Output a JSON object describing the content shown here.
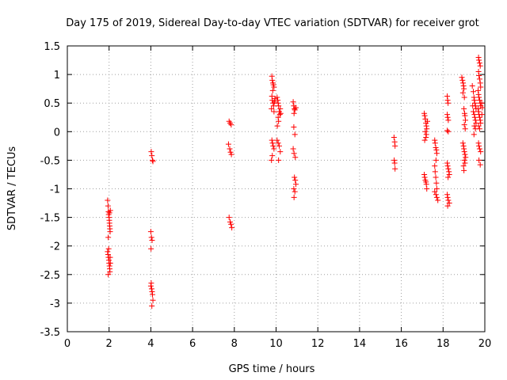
{
  "chart_data": {
    "type": "scatter",
    "title": "Day 175 of 2019, Sidereal Day-to-day VTEC variation (SDTVAR) for receiver grot",
    "xlabel": "GPS time / hours",
    "ylabel": "SDTVAR / TECUs",
    "xlim": [
      0,
      20
    ],
    "ylim": [
      -3.5,
      1.5
    ],
    "xticks": [
      "0",
      "2",
      "4",
      "6",
      "8",
      "10",
      "12",
      "14",
      "16",
      "18",
      "20"
    ],
    "yticks": [
      "1.5",
      "1",
      "0.5",
      "0",
      "-0.5",
      "-1",
      "-1.5",
      "-2",
      "-2.5",
      "-3",
      "-3.5"
    ],
    "grid": true,
    "marker": "+",
    "color": "#ff0000",
    "series": [
      {
        "name": "SDTVAR",
        "points": [
          [
            1.93,
            -1.2
          ],
          [
            1.95,
            -1.3
          ],
          [
            1.97,
            -1.4
          ],
          [
            1.98,
            -1.45
          ],
          [
            2.0,
            -1.5
          ],
          [
            2.01,
            -1.55
          ],
          [
            2.02,
            -1.6
          ],
          [
            2.03,
            -1.65
          ],
          [
            2.04,
            -1.7
          ],
          [
            2.05,
            -1.75
          ],
          [
            1.96,
            -1.85
          ],
          [
            2.02,
            -1.42
          ],
          [
            2.06,
            -1.38
          ],
          [
            1.93,
            -2.1
          ],
          [
            1.95,
            -2.15
          ],
          [
            1.97,
            -2.2
          ],
          [
            1.99,
            -2.25
          ],
          [
            2.0,
            -2.3
          ],
          [
            2.02,
            -2.35
          ],
          [
            2.03,
            -2.4
          ],
          [
            2.04,
            -2.45
          ],
          [
            1.96,
            -2.5
          ],
          [
            2.05,
            -2.2
          ],
          [
            2.06,
            -2.3
          ],
          [
            1.98,
            -2.05
          ],
          [
            4.02,
            -0.35
          ],
          [
            4.05,
            -0.42
          ],
          [
            4.08,
            -0.5
          ],
          [
            4.1,
            -0.52
          ],
          [
            4.0,
            -1.75
          ],
          [
            4.03,
            -1.85
          ],
          [
            4.06,
            -1.9
          ],
          [
            4.01,
            -2.05
          ],
          [
            4.02,
            -2.65
          ],
          [
            4.04,
            -2.75
          ],
          [
            4.06,
            -2.8
          ],
          [
            4.08,
            -2.85
          ],
          [
            4.1,
            -2.95
          ],
          [
            4.05,
            -3.05
          ],
          [
            4.0,
            -2.7
          ],
          [
            7.75,
            0.18
          ],
          [
            7.8,
            0.15
          ],
          [
            7.85,
            0.12
          ],
          [
            7.72,
            -0.22
          ],
          [
            7.78,
            -0.3
          ],
          [
            7.82,
            -0.36
          ],
          [
            7.86,
            -0.4
          ],
          [
            7.75,
            -1.5
          ],
          [
            7.8,
            -1.58
          ],
          [
            7.84,
            -1.62
          ],
          [
            7.88,
            -1.68
          ],
          [
            9.8,
            0.97
          ],
          [
            9.82,
            0.9
          ],
          [
            9.85,
            0.85
          ],
          [
            9.87,
            0.82
          ],
          [
            9.9,
            0.78
          ],
          [
            9.84,
            0.72
          ],
          [
            9.8,
            0.62
          ],
          [
            9.82,
            0.55
          ],
          [
            9.86,
            0.5
          ],
          [
            9.88,
            0.45
          ],
          [
            9.92,
            0.52
          ],
          [
            9.95,
            0.58
          ],
          [
            9.78,
            0.4
          ],
          [
            9.9,
            0.35
          ],
          [
            9.8,
            -0.15
          ],
          [
            9.83,
            -0.2
          ],
          [
            9.86,
            -0.25
          ],
          [
            9.9,
            -0.3
          ],
          [
            9.82,
            -0.42
          ],
          [
            9.78,
            -0.5
          ],
          [
            10.05,
            0.6
          ],
          [
            10.08,
            0.55
          ],
          [
            10.1,
            0.5
          ],
          [
            10.12,
            0.45
          ],
          [
            10.15,
            0.35
          ],
          [
            10.18,
            0.3
          ],
          [
            10.1,
            0.25
          ],
          [
            10.12,
            0.18
          ],
          [
            10.06,
            0.1
          ],
          [
            10.2,
            0.4
          ],
          [
            10.22,
            0.32
          ],
          [
            10.05,
            -0.15
          ],
          [
            10.1,
            -0.2
          ],
          [
            10.15,
            -0.25
          ],
          [
            10.2,
            -0.35
          ],
          [
            10.12,
            -0.5
          ],
          [
            10.82,
            0.52
          ],
          [
            10.85,
            0.45
          ],
          [
            10.88,
            0.4
          ],
          [
            10.9,
            0.38
          ],
          [
            10.95,
            0.42
          ],
          [
            10.86,
            0.32
          ],
          [
            10.85,
            0.08
          ],
          [
            10.9,
            -0.05
          ],
          [
            10.82,
            -0.3
          ],
          [
            10.86,
            -0.38
          ],
          [
            10.92,
            -0.45
          ],
          [
            10.88,
            -0.8
          ],
          [
            10.92,
            -0.85
          ],
          [
            10.95,
            -0.92
          ],
          [
            10.85,
            -1.0
          ],
          [
            10.9,
            -1.05
          ],
          [
            10.86,
            -1.15
          ],
          [
            15.65,
            -0.1
          ],
          [
            15.68,
            -0.18
          ],
          [
            15.7,
            -0.25
          ],
          [
            15.66,
            -0.5
          ],
          [
            15.68,
            -0.55
          ],
          [
            15.7,
            -0.65
          ],
          [
            17.1,
            0.32
          ],
          [
            17.12,
            0.28
          ],
          [
            17.15,
            0.22
          ],
          [
            17.18,
            0.15
          ],
          [
            17.2,
            0.1
          ],
          [
            17.22,
            0.05
          ],
          [
            17.15,
            0.0
          ],
          [
            17.2,
            -0.05
          ],
          [
            17.25,
            0.18
          ],
          [
            17.18,
            -0.1
          ],
          [
            17.12,
            -0.15
          ],
          [
            17.1,
            -0.75
          ],
          [
            17.12,
            -0.8
          ],
          [
            17.15,
            -0.85
          ],
          [
            17.18,
            -0.88
          ],
          [
            17.2,
            -0.92
          ],
          [
            17.22,
            -1.0
          ],
          [
            17.6,
            -0.15
          ],
          [
            17.62,
            -0.2
          ],
          [
            17.65,
            -0.28
          ],
          [
            17.68,
            -0.32
          ],
          [
            17.7,
            -0.38
          ],
          [
            17.66,
            -0.5
          ],
          [
            17.6,
            -0.6
          ],
          [
            17.62,
            -0.7
          ],
          [
            17.65,
            -0.8
          ],
          [
            17.68,
            -0.9
          ],
          [
            17.7,
            -1.0
          ],
          [
            17.66,
            -1.1
          ],
          [
            17.7,
            -1.15
          ],
          [
            17.75,
            -1.2
          ],
          [
            17.6,
            -1.05
          ],
          [
            18.2,
            0.62
          ],
          [
            18.22,
            0.55
          ],
          [
            18.24,
            0.5
          ],
          [
            18.2,
            0.3
          ],
          [
            18.22,
            0.25
          ],
          [
            18.25,
            0.2
          ],
          [
            18.2,
            0.02
          ],
          [
            18.25,
            0.0
          ],
          [
            18.2,
            -0.55
          ],
          [
            18.22,
            -0.6
          ],
          [
            18.25,
            -0.65
          ],
          [
            18.28,
            -0.7
          ],
          [
            18.3,
            -0.75
          ],
          [
            18.24,
            -0.8
          ],
          [
            18.2,
            -1.1
          ],
          [
            18.22,
            -1.15
          ],
          [
            18.25,
            -1.2
          ],
          [
            18.3,
            -1.25
          ],
          [
            18.22,
            -1.3
          ],
          [
            18.9,
            0.95
          ],
          [
            18.93,
            0.9
          ],
          [
            18.96,
            0.85
          ],
          [
            18.98,
            0.8
          ],
          [
            19.0,
            0.75
          ],
          [
            18.95,
            0.68
          ],
          [
            19.02,
            0.6
          ],
          [
            19.0,
            0.4
          ],
          [
            19.03,
            0.32
          ],
          [
            19.05,
            0.28
          ],
          [
            19.07,
            0.2
          ],
          [
            19.02,
            0.12
          ],
          [
            19.06,
            0.05
          ],
          [
            18.95,
            -0.2
          ],
          [
            18.98,
            -0.25
          ],
          [
            19.0,
            -0.3
          ],
          [
            19.02,
            -0.35
          ],
          [
            19.05,
            -0.4
          ],
          [
            19.08,
            -0.45
          ],
          [
            19.02,
            -0.5
          ],
          [
            19.05,
            -0.55
          ],
          [
            18.98,
            -0.6
          ],
          [
            19.0,
            -0.68
          ],
          [
            19.4,
            0.8
          ],
          [
            19.45,
            0.7
          ],
          [
            19.48,
            0.6
          ],
          [
            19.5,
            0.55
          ],
          [
            19.52,
            0.5
          ],
          [
            19.55,
            0.45
          ],
          [
            19.58,
            0.4
          ],
          [
            19.45,
            0.35
          ],
          [
            19.5,
            0.3
          ],
          [
            19.52,
            0.25
          ],
          [
            19.55,
            0.2
          ],
          [
            19.58,
            0.15
          ],
          [
            19.5,
            0.1
          ],
          [
            19.55,
            0.05
          ],
          [
            19.48,
            -0.05
          ],
          [
            19.42,
            0.45
          ],
          [
            19.7,
            1.3
          ],
          [
            19.72,
            1.25
          ],
          [
            19.75,
            1.2
          ],
          [
            19.78,
            1.15
          ],
          [
            19.7,
            1.05
          ],
          [
            19.72,
            0.98
          ],
          [
            19.75,
            0.92
          ],
          [
            19.78,
            0.85
          ],
          [
            19.8,
            0.78
          ],
          [
            19.68,
            0.72
          ],
          [
            19.7,
            0.65
          ],
          [
            19.72,
            0.6
          ],
          [
            19.75,
            0.55
          ],
          [
            19.78,
            0.5
          ],
          [
            19.8,
            0.45
          ],
          [
            19.68,
            0.4
          ],
          [
            19.7,
            0.35
          ],
          [
            19.72,
            0.3
          ],
          [
            19.75,
            0.25
          ],
          [
            19.78,
            0.2
          ],
          [
            19.8,
            0.15
          ],
          [
            19.7,
            0.1
          ],
          [
            19.75,
            0.05
          ],
          [
            19.85,
            0.5
          ],
          [
            19.88,
            0.42
          ],
          [
            19.86,
            0.3
          ],
          [
            19.7,
            -0.2
          ],
          [
            19.72,
            -0.25
          ],
          [
            19.75,
            -0.3
          ],
          [
            19.8,
            -0.35
          ],
          [
            19.72,
            -0.5
          ],
          [
            19.78,
            -0.58
          ]
        ]
      }
    ]
  }
}
